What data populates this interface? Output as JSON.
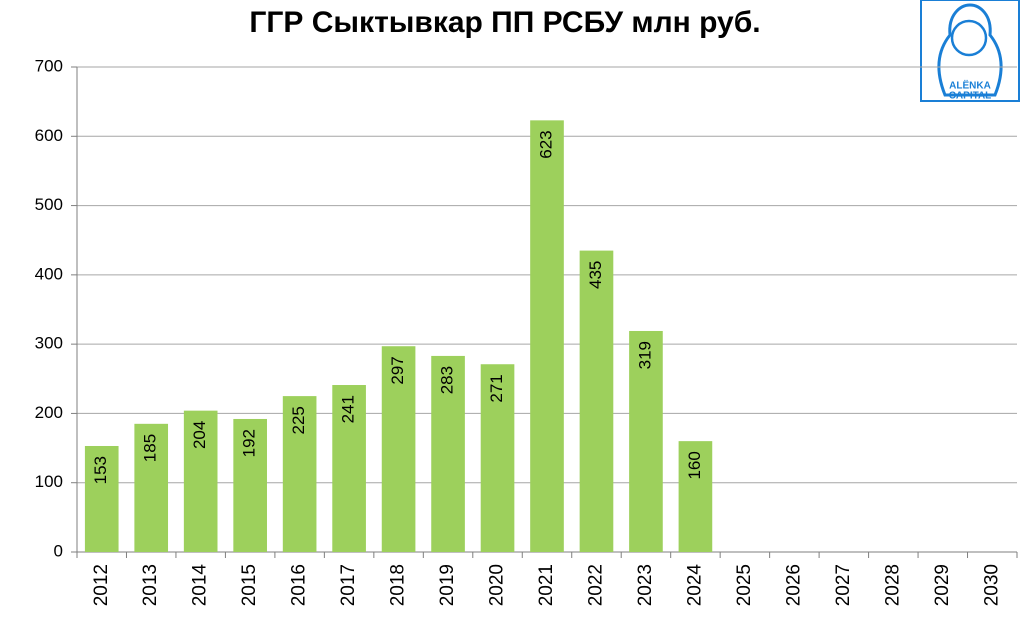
{
  "chart_data": {
    "type": "bar",
    "title": "ГГР Сыктывкар ПП РСБУ млн руб.",
    "categories": [
      "2012",
      "2013",
      "2014",
      "2015",
      "2016",
      "2017",
      "2018",
      "2019",
      "2020",
      "2021",
      "2022",
      "2023",
      "2024",
      "2025",
      "2026",
      "2027",
      "2028",
      "2029",
      "2030"
    ],
    "values": [
      153,
      185,
      204,
      192,
      225,
      241,
      297,
      283,
      271,
      623,
      435,
      319,
      160,
      null,
      null,
      null,
      null,
      null,
      null
    ],
    "color": "#9dd05c",
    "ylim": [
      0,
      700
    ],
    "yticks": [
      0,
      100,
      200,
      300,
      400,
      500,
      600,
      700
    ],
    "grid": true,
    "logo_text": [
      "ALËNKA",
      "CAPITAL"
    ]
  }
}
